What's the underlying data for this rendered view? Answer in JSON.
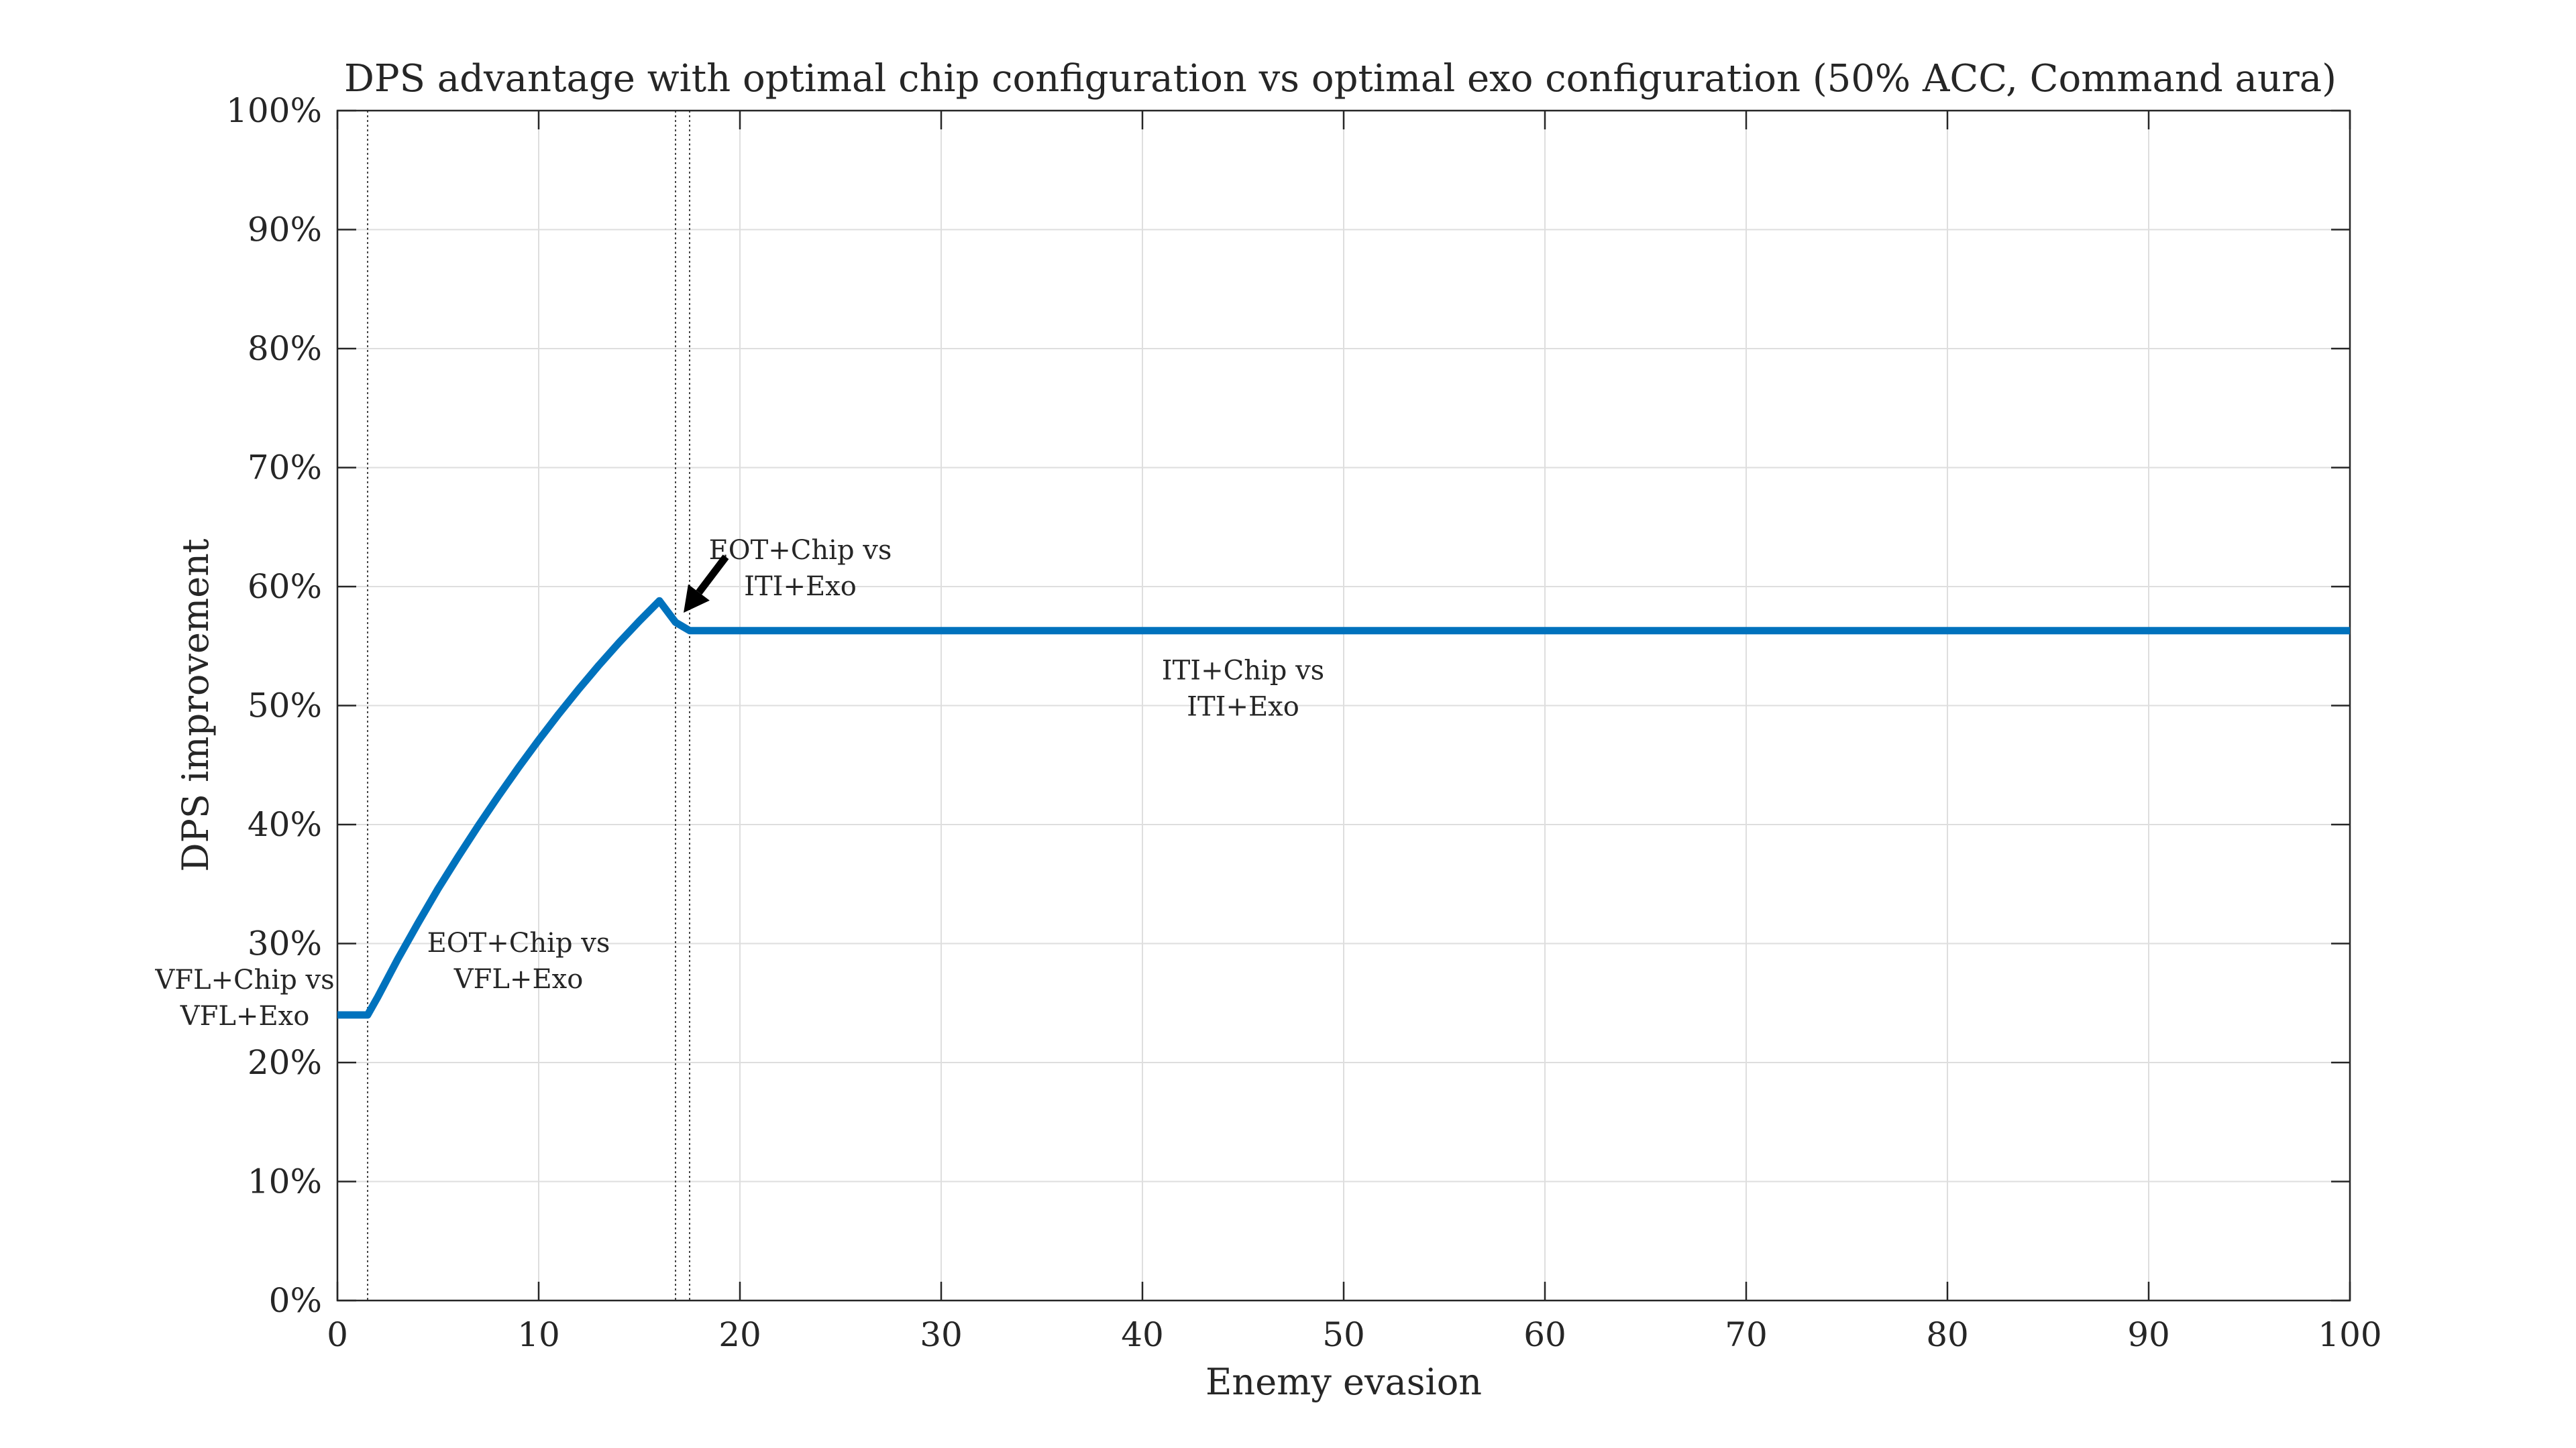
{
  "chart_data": {
    "type": "line",
    "title": "DPS advantage with optimal chip configuration vs optimal exo configuration (50% ACC, Command aura)",
    "xlabel": "Enemy evasion",
    "ylabel": "DPS improvement",
    "xlim": [
      0,
      100
    ],
    "ylim": [
      0,
      100
    ],
    "x_ticks": [
      0,
      10,
      20,
      30,
      40,
      50,
      60,
      70,
      80,
      90,
      100
    ],
    "y_ticks": [
      0,
      10,
      20,
      30,
      40,
      50,
      60,
      70,
      80,
      90,
      100
    ],
    "y_tick_labels": [
      "0%",
      "10%",
      "20%",
      "30%",
      "40%",
      "50%",
      "60%",
      "70%",
      "80%",
      "90%",
      "100%"
    ],
    "grid": true,
    "line_color": "#0072BD",
    "series": [
      {
        "x": [
          0,
          1.5,
          2,
          3,
          4,
          5,
          6,
          7,
          8,
          9,
          10,
          11,
          12,
          13,
          14,
          15,
          16,
          16.8,
          17.5,
          20,
          30,
          40,
          50,
          60,
          70,
          80,
          90,
          100
        ],
        "values": [
          24.0,
          24.0,
          25.5,
          28.7,
          31.7,
          34.6,
          37.3,
          39.9,
          42.4,
          44.8,
          47.1,
          49.3,
          51.4,
          53.4,
          55.3,
          57.1,
          58.8,
          57.0,
          56.3,
          56.3,
          56.3,
          56.3,
          56.3,
          56.3,
          56.3,
          56.3,
          56.3,
          56.3
        ]
      }
    ],
    "vertical_lines": [
      1.5,
      16.8,
      17.5
    ],
    "annotations": [
      {
        "lines": [
          "VFL+Chip vs",
          "VFL+Exo"
        ],
        "x": -4.6,
        "y": 26.2
      },
      {
        "lines": [
          "EOT+Chip vs",
          "VFL+Exo"
        ],
        "x": 9.0,
        "y": 29.3
      },
      {
        "lines": [
          "EOT+Chip vs",
          "ITI+Exo"
        ],
        "x": 23.0,
        "y": 62.3
      },
      {
        "lines": [
          "ITI+Chip vs",
          "ITI+Exo"
        ],
        "x": 45.0,
        "y": 52.2
      }
    ],
    "arrow": {
      "from": [
        19.3,
        62.5
      ],
      "to": [
        17.2,
        57.8
      ]
    }
  }
}
